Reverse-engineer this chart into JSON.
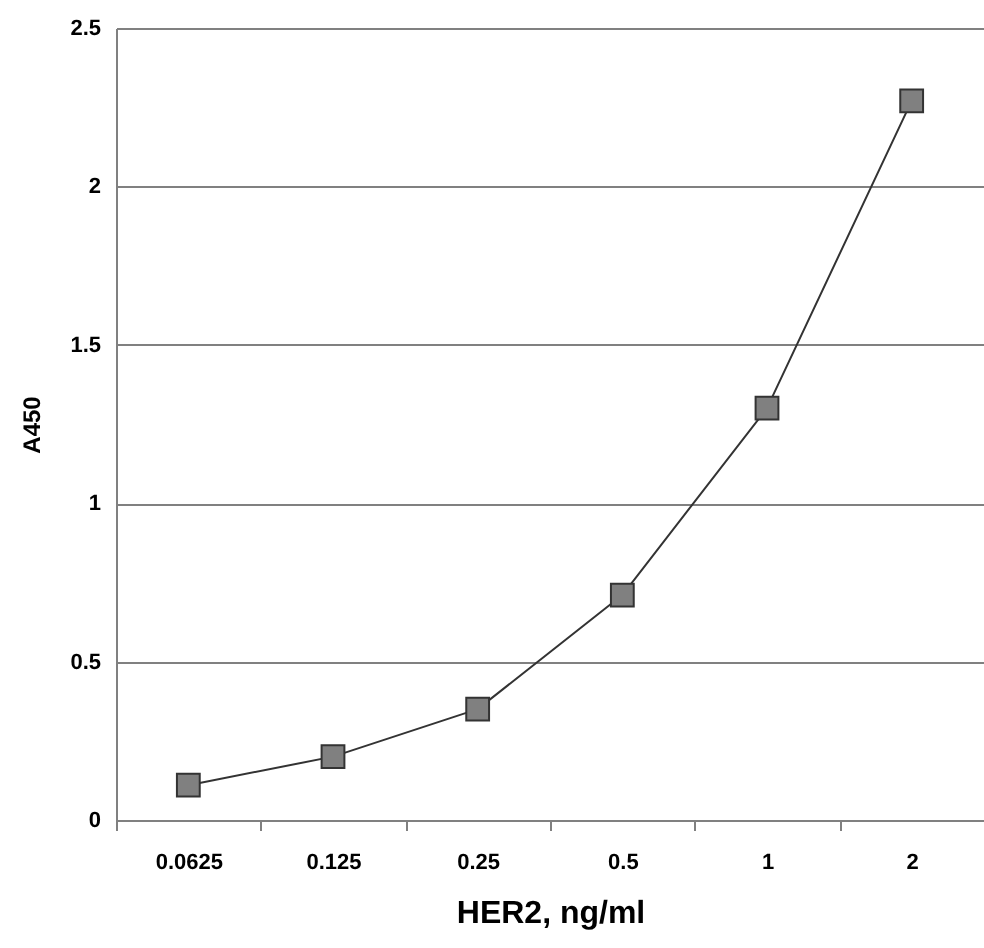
{
  "chart_data": {
    "type": "line",
    "xlabel": "HER2, ng/ml",
    "ylabel": "A450",
    "categories": [
      "0.0625",
      "0.125",
      "0.25",
      "0.5",
      "1",
      "2"
    ],
    "series": [
      {
        "color": "#808080",
        "values": [
          0.11,
          0.2,
          0.35,
          0.71,
          1.3,
          2.27
        ]
      }
    ],
    "ylim": [
      0,
      2.5
    ],
    "yticks": [
      0,
      0.5,
      1,
      1.5,
      2,
      2.5
    ],
    "grid": "y",
    "marker": "square",
    "line_style": "solid"
  }
}
